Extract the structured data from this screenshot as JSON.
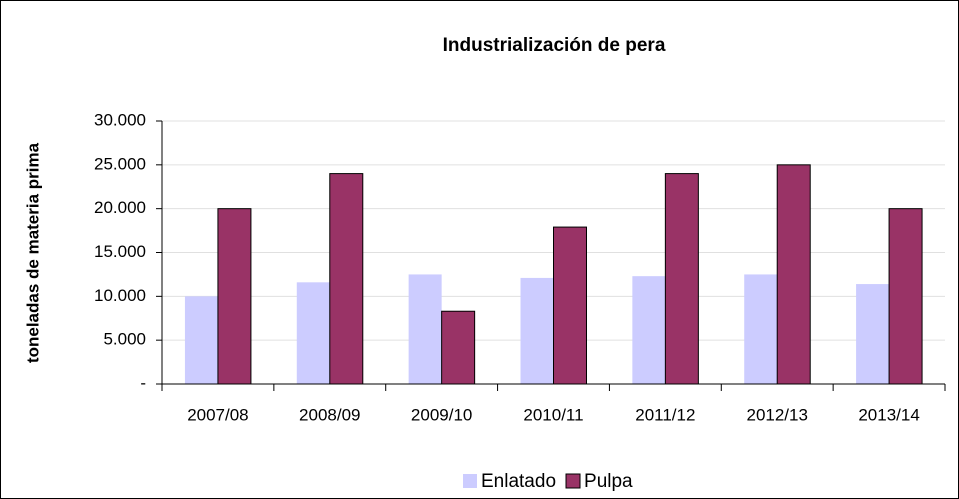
{
  "chart_data": {
    "type": "bar",
    "title": "Industrialización de pera",
    "y_label": "toneladas de materia prima",
    "categories": [
      "2007/08",
      "2008/09",
      "2009/10",
      "2010/11",
      "2011/12",
      "2012/13",
      "2013/14"
    ],
    "series": [
      {
        "name": "Enlatado",
        "color": "#ccccff",
        "values": [
          10000,
          11600,
          12500,
          12100,
          12300,
          12500,
          11400
        ]
      },
      {
        "name": "Pulpa",
        "color": "#993366",
        "values": [
          20000,
          24000,
          8300,
          17900,
          24000,
          25000,
          20000
        ]
      }
    ],
    "ylim": [
      0,
      30000
    ],
    "yticks": [
      {
        "value": 0,
        "label": "-"
      },
      {
        "value": 5000,
        "label": "5.000"
      },
      {
        "value": 10000,
        "label": "10.000"
      },
      {
        "value": 15000,
        "label": "15.000"
      },
      {
        "value": 20000,
        "label": "20.000"
      },
      {
        "value": 25000,
        "label": "25.000"
      },
      {
        "value": 30000,
        "label": "30.000"
      }
    ],
    "grid": true,
    "legend": "bottom"
  }
}
